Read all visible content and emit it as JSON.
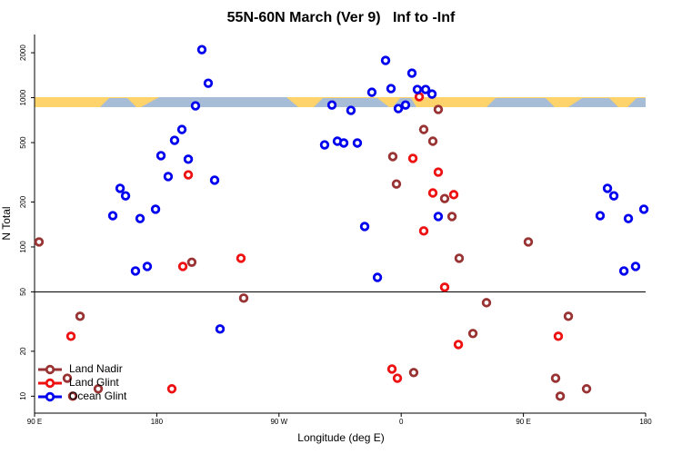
{
  "chart_data": {
    "type": "scatter",
    "title": "55N-60N March (Ver 9)   Inf to -Inf",
    "xlabel": "Longitude (deg E)",
    "ylabel": "N Total",
    "log_y": true,
    "legend": "lower left",
    "hline": 50,
    "xlim": [
      90,
      540
    ],
    "ylim": [
      7.7,
      2650
    ],
    "xticks": [
      {
        "value": 90,
        "label": "90 E"
      },
      180,
      {
        "value": 270,
        "label": "90 W"
      },
      {
        "value": 360,
        "label": "0"
      },
      {
        "value": 450,
        "label": "90 E"
      },
      {
        "value": 540,
        "label": "180"
      }
    ],
    "yticks": [
      10,
      20,
      50,
      100,
      200,
      500,
      1000,
      2000
    ],
    "series": [
      {
        "name": "Land Nadir",
        "color": "#993333",
        "x": [
          93.3,
          114.1,
          118.1,
          123.5,
          136.9,
          205.8,
          244,
          353.8,
          356.5,
          369.2,
          376.6,
          383.3,
          387.3,
          392,
          397.4,
          402.7,
          412.8,
          422.8,
          453.6,
          473.7,
          477.1,
          483.1,
          496.5
        ],
        "values": [
          108,
          13.2,
          10,
          34.3,
          11.2,
          79,
          45.4,
          403,
          264,
          14.4,
          612,
          511,
          834,
          211,
          160,
          84,
          26.3,
          42.3,
          108,
          13.2,
          10,
          34.3,
          11.2
        ]
      },
      {
        "name": "Land Glint",
        "color": "#ee1111",
        "x": [
          116.8,
          191.1,
          199.2,
          203.2,
          242,
          353.2,
          357.2,
          368.6,
          373.3,
          376.6,
          383.3,
          387.3,
          392,
          398.7,
          402.1,
          475.7
        ],
        "values": [
          25.2,
          11.2,
          74,
          304,
          84,
          15.2,
          13.2,
          392,
          1014,
          128,
          230,
          317,
          53.7,
          224,
          22.2,
          25.2
        ]
      },
      {
        "name": "Ocean Glint",
        "color": "#0000ee",
        "x": [
          147.6,
          153,
          157,
          164.3,
          167.7,
          173,
          179.1,
          183.1,
          188.4,
          193.1,
          198.5,
          203.2,
          208.5,
          213.2,
          217.9,
          222.6,
          226.6,
          303.6,
          309,
          313,
          317.7,
          323,
          327.7,
          333.1,
          338.4,
          342.5,
          348.5,
          352.5,
          357.9,
          363.2,
          367.9,
          371.9,
          378,
          382.7,
          387.3,
          506.5,
          511.9,
          516.6,
          524,
          527.3,
          532.6,
          538.7
        ],
        "values": [
          162,
          247,
          220,
          69,
          155,
          74,
          179,
          409,
          296,
          518,
          612,
          387,
          882,
          2099,
          1250,
          280,
          28.2,
          483,
          893,
          511,
          497,
          822,
          497,
          137,
          1087,
          62.5,
          1775,
          1150,
          846,
          893,
          1459,
          1135,
          1135,
          1057,
          160,
          162,
          247,
          220,
          69,
          155,
          74,
          179
        ]
      }
    ]
  }
}
